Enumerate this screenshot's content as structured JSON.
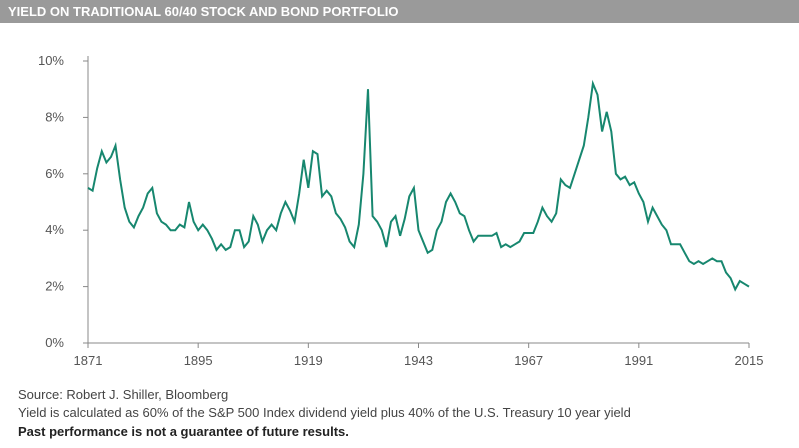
{
  "chart_data": {
    "type": "line",
    "title": "YIELD ON TRADITIONAL 60/40 STOCK AND BOND PORTFOLIO",
    "source": "Source: Robert J. Shiller, Bloomberg",
    "note": "Yield is calculated as 60% of the S&P 500 Index dividend yield plus 40% of the U.S. Treasury 10 year yield",
    "disclaimer": "Past performance is not a guarantee of future results.",
    "x": [
      1871,
      1872,
      1873,
      1874,
      1875,
      1876,
      1877,
      1878,
      1879,
      1880,
      1881,
      1882,
      1883,
      1884,
      1885,
      1886,
      1887,
      1888,
      1889,
      1890,
      1891,
      1892,
      1893,
      1894,
      1895,
      1896,
      1897,
      1898,
      1899,
      1900,
      1901,
      1902,
      1903,
      1904,
      1905,
      1906,
      1907,
      1908,
      1909,
      1910,
      1911,
      1912,
      1913,
      1914,
      1915,
      1916,
      1917,
      1918,
      1919,
      1920,
      1921,
      1922,
      1923,
      1924,
      1925,
      1926,
      1927,
      1928,
      1929,
      1930,
      1931,
      1932,
      1933,
      1934,
      1935,
      1936,
      1937,
      1938,
      1939,
      1940,
      1941,
      1942,
      1943,
      1944,
      1945,
      1946,
      1947,
      1948,
      1949,
      1950,
      1951,
      1952,
      1953,
      1954,
      1955,
      1956,
      1957,
      1958,
      1959,
      1960,
      1961,
      1962,
      1963,
      1964,
      1965,
      1966,
      1967,
      1968,
      1969,
      1970,
      1971,
      1972,
      1973,
      1974,
      1975,
      1976,
      1977,
      1978,
      1979,
      1980,
      1981,
      1982,
      1983,
      1984,
      1985,
      1986,
      1987,
      1988,
      1989,
      1990,
      1991,
      1992,
      1993,
      1994,
      1995,
      1996,
      1997,
      1998,
      1999,
      2000,
      2001,
      2002,
      2003,
      2004,
      2005,
      2006,
      2007,
      2008,
      2009,
      2010,
      2011,
      2012,
      2013,
      2014,
      2015
    ],
    "series": [
      {
        "name": "Yield",
        "color": "#17876f",
        "values": [
          5.5,
          5.4,
          6.2,
          6.8,
          6.4,
          6.6,
          7.0,
          5.8,
          4.8,
          4.3,
          4.1,
          4.5,
          4.8,
          5.3,
          5.5,
          4.6,
          4.3,
          4.2,
          4.0,
          4.0,
          4.2,
          4.1,
          5.0,
          4.3,
          4.0,
          4.2,
          4.0,
          3.7,
          3.3,
          3.5,
          3.3,
          3.4,
          4.0,
          4.0,
          3.4,
          3.6,
          4.5,
          4.2,
          3.6,
          4.0,
          4.2,
          4.0,
          4.6,
          5.0,
          4.7,
          4.3,
          5.3,
          6.5,
          5.5,
          6.8,
          6.7,
          5.2,
          5.4,
          5.2,
          4.6,
          4.4,
          4.1,
          3.6,
          3.4,
          4.2,
          6.0,
          9.0,
          4.5,
          4.3,
          4.0,
          3.4,
          4.3,
          4.5,
          3.8,
          4.4,
          5.2,
          5.5,
          4.0,
          3.6,
          3.2,
          3.3,
          4.0,
          4.3,
          5.0,
          5.3,
          5.0,
          4.6,
          4.5,
          4.0,
          3.6,
          3.8,
          3.8,
          3.8,
          3.8,
          3.9,
          3.4,
          3.5,
          3.4,
          3.5,
          3.6,
          3.9,
          3.9,
          3.9,
          4.3,
          4.8,
          4.5,
          4.3,
          4.6,
          5.8,
          5.6,
          5.5,
          6.0,
          6.5,
          7.0,
          8.0,
          9.2,
          8.8,
          7.5,
          8.2,
          7.5,
          6.0,
          5.8,
          5.9,
          5.6,
          5.7,
          5.3,
          5.0,
          4.3,
          4.8,
          4.5,
          4.2,
          4.0,
          3.5,
          3.5,
          3.5,
          3.2,
          2.9,
          2.8,
          2.9,
          2.8,
          2.9,
          3.0,
          2.9,
          2.9,
          2.5,
          2.3,
          1.9,
          2.2,
          2.1,
          2.0
        ]
      }
    ],
    "xlim": [
      1871,
      2015
    ],
    "xticks": [
      1871,
      1895,
      1919,
      1943,
      1967,
      1991,
      2015
    ],
    "ylim": [
      0,
      10
    ],
    "yticks": [
      {
        "value": 0,
        "label": "0%"
      },
      {
        "value": 2,
        "label": "2%"
      },
      {
        "value": 4,
        "label": "4%"
      },
      {
        "value": 6,
        "label": "6%"
      },
      {
        "value": 8,
        "label": "8%"
      },
      {
        "value": 10,
        "label": "10%"
      }
    ],
    "grid": false
  }
}
